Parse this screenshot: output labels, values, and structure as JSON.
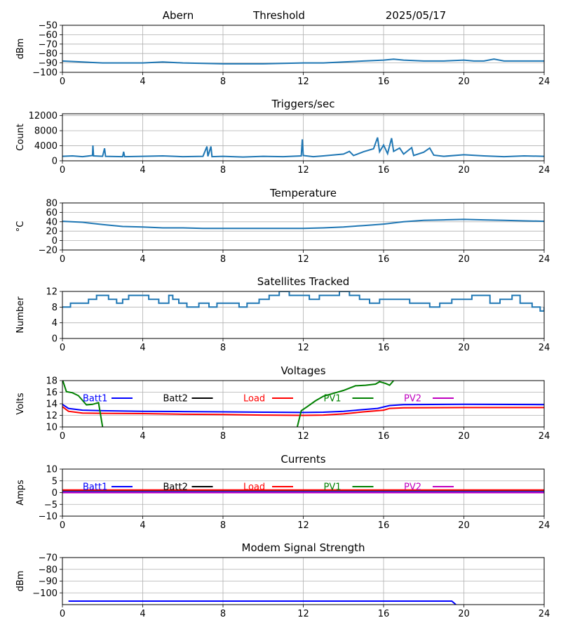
{
  "header": {
    "station": "Abern",
    "mode": "Threshold",
    "date": "2025/05/17"
  },
  "series_colors": {
    "default": "#1f77b4",
    "Batt1": "#0000ff",
    "Batt2": "#000000",
    "Load": "#ff0000",
    "PV1": "#008000",
    "PV2": "#bf00bf"
  },
  "legend_labels": [
    "Batt1",
    "Batt2",
    "Load",
    "PV1",
    "PV2"
  ],
  "chart_data": [
    {
      "type": "line",
      "title": "",
      "xlabel": "",
      "ylabel": "dBm",
      "xlim": [
        0,
        24
      ],
      "ylim": [
        -100,
        -50
      ],
      "xticks": [
        0,
        4,
        8,
        12,
        16,
        20,
        24
      ],
      "yticks": [
        -100,
        -90,
        -80,
        -70,
        -60,
        -50
      ],
      "grid": true,
      "series": [
        {
          "color": "#1f77b4",
          "points": [
            [
              0,
              -88
            ],
            [
              1,
              -89
            ],
            [
              2,
              -90
            ],
            [
              3,
              -90
            ],
            [
              4,
              -90
            ],
            [
              5,
              -89
            ],
            [
              6,
              -90
            ],
            [
              8,
              -91
            ],
            [
              10,
              -91
            ],
            [
              12,
              -90
            ],
            [
              13,
              -90
            ],
            [
              14,
              -89
            ],
            [
              15,
              -88
            ],
            [
              16,
              -87
            ],
            [
              16.5,
              -86
            ],
            [
              17,
              -87
            ],
            [
              18,
              -88
            ],
            [
              19,
              -88
            ],
            [
              20,
              -87
            ],
            [
              20.5,
              -88
            ],
            [
              21,
              -88
            ],
            [
              21.5,
              -86
            ],
            [
              22,
              -88
            ],
            [
              23,
              -88
            ],
            [
              24,
              -88
            ]
          ]
        }
      ]
    },
    {
      "type": "line",
      "title": "Triggers/sec",
      "xlabel": "",
      "ylabel": "Count",
      "xlim": [
        0,
        24
      ],
      "ylim": [
        0,
        12500
      ],
      "xticks": [
        0,
        4,
        8,
        12,
        16,
        20,
        24
      ],
      "yticks": [
        0,
        4000,
        8000,
        12000
      ],
      "grid": true,
      "series": [
        {
          "color": "#1f77b4",
          "points": [
            [
              0,
              1200
            ],
            [
              0.5,
              1300
            ],
            [
              1,
              1100
            ],
            [
              1.5,
              1400
            ],
            [
              1.52,
              4100
            ],
            [
              1.55,
              1300
            ],
            [
              2,
              1200
            ],
            [
              2.1,
              3300
            ],
            [
              2.15,
              1200
            ],
            [
              3,
              1100
            ],
            [
              3.05,
              2400
            ],
            [
              3.1,
              1100
            ],
            [
              4,
              1200
            ],
            [
              5,
              1300
            ],
            [
              6,
              1100
            ],
            [
              7,
              1200
            ],
            [
              7.2,
              3800
            ],
            [
              7.25,
              1200
            ],
            [
              7.4,
              3800
            ],
            [
              7.45,
              1100
            ],
            [
              8,
              1200
            ],
            [
              9,
              1000
            ],
            [
              10,
              1200
            ],
            [
              11,
              1100
            ],
            [
              11.9,
              1300
            ],
            [
              11.95,
              5700
            ],
            [
              12,
              1400
            ],
            [
              12.5,
              1100
            ],
            [
              13,
              1300
            ],
            [
              14,
              1800
            ],
            [
              14.3,
              2500
            ],
            [
              14.5,
              1400
            ],
            [
              15,
              2400
            ],
            [
              15.5,
              3200
            ],
            [
              15.7,
              6200
            ],
            [
              15.8,
              2400
            ],
            [
              16,
              4200
            ],
            [
              16.2,
              1900
            ],
            [
              16.4,
              6000
            ],
            [
              16.5,
              2500
            ],
            [
              16.8,
              3400
            ],
            [
              17,
              1800
            ],
            [
              17.4,
              3500
            ],
            [
              17.5,
              1400
            ],
            [
              18,
              2300
            ],
            [
              18.3,
              3400
            ],
            [
              18.5,
              1500
            ],
            [
              19,
              1200
            ],
            [
              20,
              1600
            ],
            [
              21,
              1300
            ],
            [
              22,
              1100
            ],
            [
              23,
              1300
            ],
            [
              24,
              1200
            ]
          ]
        }
      ]
    },
    {
      "type": "line",
      "title": "Temperature",
      "xlabel": "",
      "ylabel": "°C",
      "xlim": [
        0,
        24
      ],
      "ylim": [
        -20,
        80
      ],
      "xticks": [
        0,
        4,
        8,
        12,
        16,
        20,
        24
      ],
      "yticks": [
        -20,
        0,
        20,
        40,
        60,
        80
      ],
      "grid": true,
      "series": [
        {
          "color": "#1f77b4",
          "points": [
            [
              0,
              41
            ],
            [
              1,
              39
            ],
            [
              2,
              34
            ],
            [
              3,
              30
            ],
            [
              4,
              29
            ],
            [
              5,
              27
            ],
            [
              6,
              27
            ],
            [
              7,
              26
            ],
            [
              8,
              26
            ],
            [
              10,
              26
            ],
            [
              12,
              26
            ],
            [
              13,
              27
            ],
            [
              14,
              29
            ],
            [
              15,
              32
            ],
            [
              16,
              35
            ],
            [
              17,
              40
            ],
            [
              18,
              43
            ],
            [
              19,
              44
            ],
            [
              20,
              45
            ],
            [
              21,
              44
            ],
            [
              22,
              43
            ],
            [
              23,
              42
            ],
            [
              24,
              41
            ]
          ]
        }
      ]
    },
    {
      "type": "line",
      "title": "Satellites Tracked",
      "xlabel": "",
      "ylabel": "Number",
      "xlim": [
        0,
        24
      ],
      "ylim": [
        0,
        12
      ],
      "xticks": [
        0,
        4,
        8,
        12,
        16,
        20,
        24
      ],
      "yticks": [
        0,
        4,
        8,
        12
      ],
      "grid": true,
      "series": [
        {
          "color": "#1f77b4",
          "steps": [
            [
              0,
              8
            ],
            [
              0.4,
              9
            ],
            [
              1.3,
              10
            ],
            [
              1.7,
              11
            ],
            [
              2.3,
              10
            ],
            [
              2.7,
              9
            ],
            [
              3.0,
              10
            ],
            [
              3.3,
              11
            ],
            [
              4.3,
              10
            ],
            [
              4.8,
              9
            ],
            [
              5.3,
              11
            ],
            [
              5.5,
              10
            ],
            [
              5.8,
              9
            ],
            [
              6.2,
              8
            ],
            [
              6.8,
              9
            ],
            [
              7.3,
              8
            ],
            [
              7.7,
              9
            ],
            [
              8.8,
              8
            ],
            [
              9.2,
              9
            ],
            [
              9.8,
              10
            ],
            [
              10.3,
              11
            ],
            [
              10.8,
              12
            ],
            [
              11.3,
              11
            ],
            [
              12.3,
              10
            ],
            [
              12.8,
              11
            ],
            [
              13.8,
              12
            ],
            [
              14.3,
              11
            ],
            [
              14.8,
              10
            ],
            [
              15.3,
              9
            ],
            [
              15.8,
              10
            ],
            [
              16.6,
              10
            ],
            [
              17.3,
              9
            ],
            [
              18.3,
              8
            ],
            [
              18.8,
              9
            ],
            [
              19.4,
              10
            ],
            [
              20.4,
              11
            ],
            [
              21.3,
              9
            ],
            [
              21.8,
              10
            ],
            [
              22.4,
              11
            ],
            [
              22.8,
              9
            ],
            [
              23.4,
              8
            ],
            [
              23.8,
              7
            ],
            [
              24,
              8
            ]
          ]
        }
      ]
    },
    {
      "type": "line",
      "title": "Voltages",
      "xlabel": "",
      "ylabel": "Volts",
      "xlim": [
        0,
        24
      ],
      "ylim": [
        10,
        18
      ],
      "xticks": [
        0,
        4,
        8,
        12,
        16,
        20,
        24
      ],
      "yticks": [
        10,
        12,
        14,
        16,
        18
      ],
      "grid": true,
      "series": [
        {
          "name": "Batt1",
          "color": "#0000ff",
          "points": [
            [
              0,
              13.9
            ],
            [
              0.3,
              13.2
            ],
            [
              1,
              12.9
            ],
            [
              2,
              12.8
            ],
            [
              4,
              12.7
            ],
            [
              6,
              12.65
            ],
            [
              8,
              12.6
            ],
            [
              10,
              12.55
            ],
            [
              12,
              12.5
            ],
            [
              13,
              12.55
            ],
            [
              14,
              12.7
            ],
            [
              15,
              13.0
            ],
            [
              15.7,
              13.2
            ],
            [
              16.3,
              13.7
            ],
            [
              17,
              13.85
            ],
            [
              20,
              13.9
            ],
            [
              24,
              13.85
            ]
          ]
        },
        {
          "name": "Batt2",
          "color": "#000000",
          "points": []
        },
        {
          "name": "Load",
          "color": "#ff0000",
          "points": [
            [
              0,
              13.5
            ],
            [
              0.3,
              12.7
            ],
            [
              1,
              12.4
            ],
            [
              2,
              12.35
            ],
            [
              4,
              12.3
            ],
            [
              6,
              12.2
            ],
            [
              8,
              12.15
            ],
            [
              10,
              12.05
            ],
            [
              12,
              12.0
            ],
            [
              13,
              12.05
            ],
            [
              14,
              12.25
            ],
            [
              15,
              12.6
            ],
            [
              16,
              12.9
            ],
            [
              16.3,
              13.2
            ],
            [
              17,
              13.3
            ],
            [
              20,
              13.35
            ],
            [
              24,
              13.35
            ]
          ]
        },
        {
          "name": "PV1",
          "color": "#008000",
          "points": [
            [
              0,
              18.2
            ],
            [
              0.2,
              16.1
            ],
            [
              0.5,
              15.9
            ],
            [
              0.8,
              15.4
            ],
            [
              1.2,
              13.8
            ],
            [
              1.5,
              13.9
            ],
            [
              1.8,
              14.2
            ],
            [
              2.0,
              10.0
            ]
          ],
          "points2": [
            [
              11.7,
              10.0
            ],
            [
              11.9,
              12.8
            ],
            [
              12.2,
              13.5
            ],
            [
              12.6,
              14.5
            ],
            [
              13.0,
              15.3
            ],
            [
              13.6,
              15.9
            ],
            [
              14.0,
              16.3
            ],
            [
              14.6,
              17.1
            ],
            [
              15.1,
              17.2
            ],
            [
              15.6,
              17.4
            ],
            [
              15.8,
              17.8
            ],
            [
              16.1,
              17.5
            ],
            [
              16.3,
              17.2
            ],
            [
              16.5,
              18.0
            ]
          ]
        },
        {
          "name": "PV2",
          "color": "#bf00bf",
          "points": []
        }
      ]
    },
    {
      "type": "line",
      "title": "Currents",
      "xlabel": "",
      "ylabel": "Amps",
      "xlim": [
        0,
        24
      ],
      "ylim": [
        -10,
        10
      ],
      "xticks": [
        0,
        4,
        8,
        12,
        16,
        20,
        24
      ],
      "yticks": [
        -10,
        -5,
        0,
        5,
        10
      ],
      "grid": true,
      "series": [
        {
          "name": "Batt1",
          "color": "#0000ff",
          "points": [
            [
              0,
              0.2
            ],
            [
              24,
              0.2
            ]
          ]
        },
        {
          "name": "Batt2",
          "color": "#000000",
          "points": [
            [
              0,
              0.9
            ],
            [
              24,
              0.9
            ]
          ]
        },
        {
          "name": "Load",
          "color": "#ff0000",
          "points": [
            [
              0,
              1.1
            ],
            [
              24,
              1.1
            ]
          ]
        },
        {
          "name": "PV1",
          "color": "#008000",
          "points": [
            [
              0,
              0.0
            ],
            [
              24,
              0.0
            ]
          ]
        },
        {
          "name": "PV2",
          "color": "#bf00bf",
          "points": [
            [
              0,
              0.0
            ],
            [
              24,
              0.0
            ]
          ]
        }
      ]
    },
    {
      "type": "line",
      "title": "Modem Signal Strength",
      "xlabel": "",
      "ylabel": "dBm",
      "xlim": [
        0,
        24
      ],
      "ylim": [
        -110,
        -70
      ],
      "xticks": [
        0,
        4,
        8,
        12,
        16,
        20,
        24
      ],
      "yticks": [
        -100,
        -90,
        -80,
        -70
      ],
      "grid": true,
      "series": [
        {
          "color": "#0000ff",
          "points": [
            [
              0.3,
              -107
            ],
            [
              19.4,
              -107
            ],
            [
              19.6,
              -110
            ]
          ]
        }
      ]
    }
  ]
}
